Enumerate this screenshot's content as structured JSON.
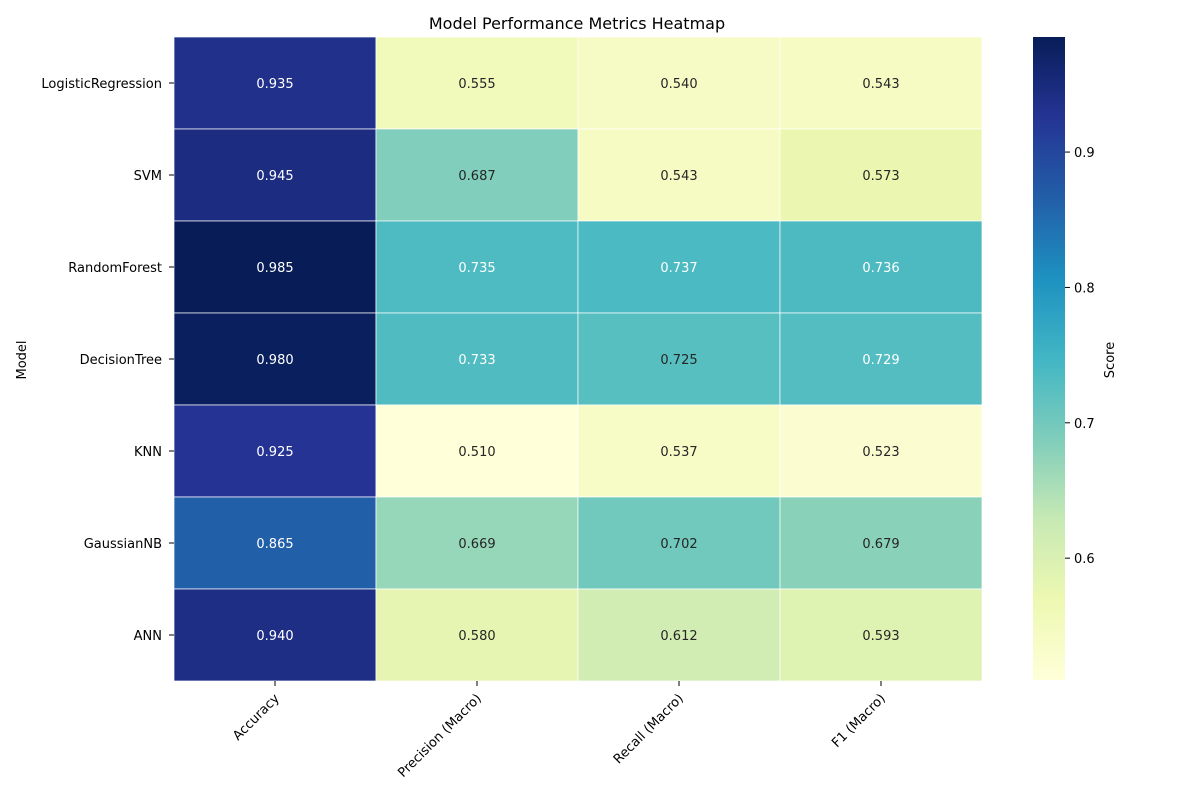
{
  "chart_data": {
    "type": "heatmap",
    "title": "Model Performance Metrics Heatmap",
    "ylabel": "Model",
    "xlabel": "",
    "columns": [
      "Accuracy",
      "Precision (Macro)",
      "Recall (Macro)",
      "F1 (Macro)"
    ],
    "rows": [
      "LogisticRegression",
      "SVM",
      "RandomForest",
      "DecisionTree",
      "KNN",
      "GaussianNB",
      "ANN"
    ],
    "values": [
      [
        0.935,
        0.555,
        0.54,
        0.543
      ],
      [
        0.945,
        0.687,
        0.543,
        0.573
      ],
      [
        0.985,
        0.735,
        0.737,
        0.736
      ],
      [
        0.98,
        0.733,
        0.725,
        0.729
      ],
      [
        0.925,
        0.51,
        0.537,
        0.523
      ],
      [
        0.865,
        0.669,
        0.702,
        0.679
      ],
      [
        0.94,
        0.58,
        0.612,
        0.593
      ]
    ],
    "value_format": "3 decimals",
    "colormap": "YlGnBu",
    "color_range": [
      0.51,
      0.985
    ],
    "colorbar": {
      "label": "Score",
      "ticks": [
        "0.6",
        "0.7",
        "0.8",
        "0.9"
      ],
      "tick_values": [
        0.6,
        0.7,
        0.8,
        0.9
      ]
    }
  }
}
